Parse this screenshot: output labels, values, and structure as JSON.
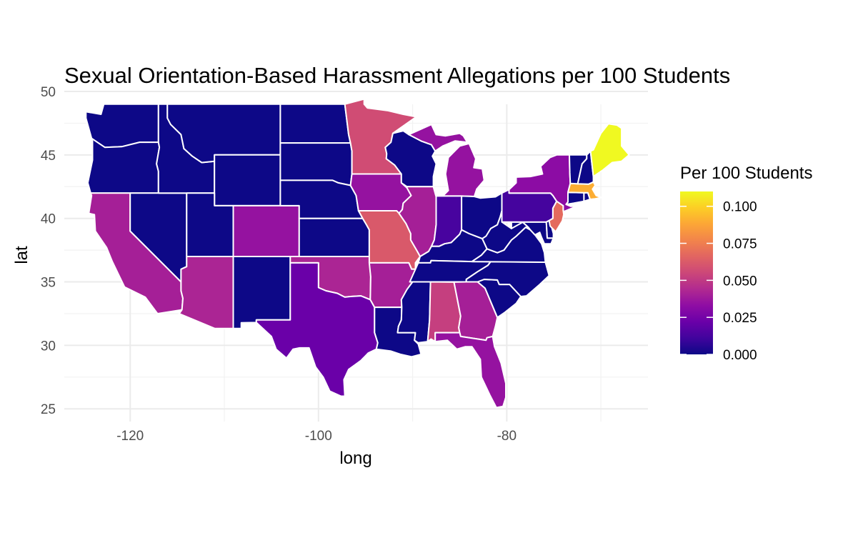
{
  "chart_data": {
    "type": "choropleth",
    "title": "Sexual Orientation-Based Harassment Allegations per 100 Students",
    "xlabel": "long",
    "ylabel": "lat",
    "xlim": [
      -127,
      -65
    ],
    "ylim": [
      24,
      50
    ],
    "x_ticks": [
      -120,
      -100,
      -80
    ],
    "x_tick_labels": [
      "-120",
      "-100",
      "-80"
    ],
    "y_ticks": [
      25,
      30,
      35,
      40,
      45,
      50
    ],
    "y_tick_labels": [
      "25",
      "30",
      "35",
      "40",
      "45",
      "50"
    ],
    "grid": true,
    "legend": {
      "title": "Per 100 Students",
      "placement": "right",
      "range": [
        0,
        0.11
      ],
      "ticks": [
        0.0,
        0.025,
        0.05,
        0.075,
        0.1
      ],
      "tick_labels": [
        "0.000",
        "0.025",
        "0.050",
        "0.075",
        "0.100"
      ]
    },
    "colormap": [
      "#0d0887",
      "#41049d",
      "#6a00a8",
      "#8f0da4",
      "#b12a90",
      "#cc4778",
      "#e16462",
      "#f2844b",
      "#fca636",
      "#fcce25",
      "#f0f921"
    ],
    "states": [
      {
        "code": "WA",
        "value": 0.0
      },
      {
        "code": "OR",
        "value": 0.0
      },
      {
        "code": "CA",
        "value": 0.04
      },
      {
        "code": "NV",
        "value": 0.0
      },
      {
        "code": "ID",
        "value": 0.0
      },
      {
        "code": "MT",
        "value": 0.0
      },
      {
        "code": "WY",
        "value": 0.0
      },
      {
        "code": "UT",
        "value": 0.0
      },
      {
        "code": "AZ",
        "value": 0.042
      },
      {
        "code": "CO",
        "value": 0.035
      },
      {
        "code": "NM",
        "value": 0.0
      },
      {
        "code": "ND",
        "value": 0.0
      },
      {
        "code": "SD",
        "value": 0.0
      },
      {
        "code": "NE",
        "value": 0.0
      },
      {
        "code": "KS",
        "value": 0.0
      },
      {
        "code": "OK",
        "value": 0.042
      },
      {
        "code": "TX",
        "value": 0.022
      },
      {
        "code": "MN",
        "value": 0.057
      },
      {
        "code": "IA",
        "value": 0.035
      },
      {
        "code": "MO",
        "value": 0.062
      },
      {
        "code": "AR",
        "value": 0.04
      },
      {
        "code": "LA",
        "value": 0.0
      },
      {
        "code": "WI",
        "value": 0.0
      },
      {
        "code": "IL",
        "value": 0.04
      },
      {
        "code": "MI",
        "value": 0.035
      },
      {
        "code": "IN",
        "value": 0.013
      },
      {
        "code": "OH",
        "value": 0.0
      },
      {
        "code": "KY",
        "value": 0.0
      },
      {
        "code": "TN",
        "value": 0.0
      },
      {
        "code": "MS",
        "value": 0.0
      },
      {
        "code": "AL",
        "value": 0.052
      },
      {
        "code": "GA",
        "value": 0.04
      },
      {
        "code": "FL",
        "value": 0.035
      },
      {
        "code": "SC",
        "value": 0.0
      },
      {
        "code": "NC",
        "value": 0.0
      },
      {
        "code": "VA",
        "value": 0.0
      },
      {
        "code": "WV",
        "value": 0.0
      },
      {
        "code": "MD",
        "value": 0.0
      },
      {
        "code": "DE",
        "value": 0.0
      },
      {
        "code": "PA",
        "value": 0.012
      },
      {
        "code": "NJ",
        "value": 0.068
      },
      {
        "code": "NY",
        "value": 0.032
      },
      {
        "code": "CT",
        "value": 0.0
      },
      {
        "code": "RI",
        "value": 0.0
      },
      {
        "code": "MA",
        "value": 0.09
      },
      {
        "code": "VT",
        "value": 0.0
      },
      {
        "code": "NH",
        "value": 0.0
      },
      {
        "code": "ME",
        "value": 0.11
      }
    ]
  }
}
